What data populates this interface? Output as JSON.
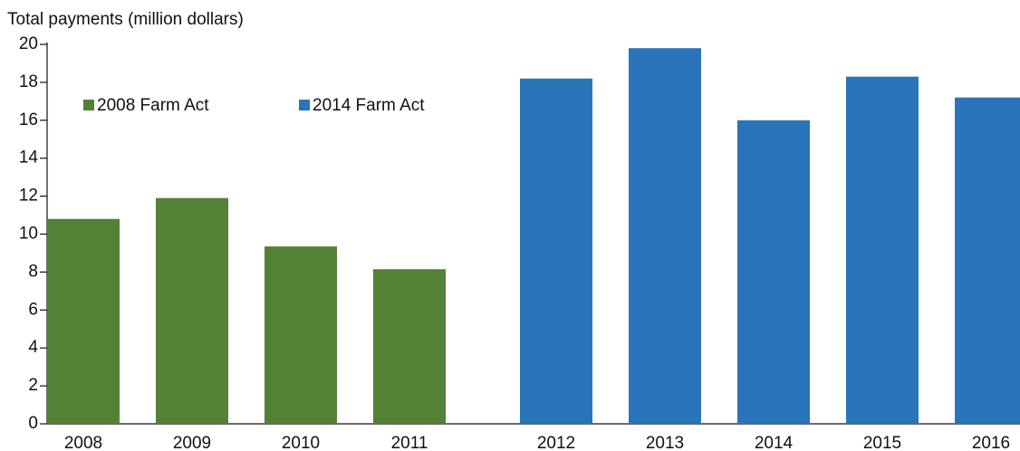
{
  "chart_data": {
    "type": "bar",
    "y_axis_label": "Total payments (million dollars)",
    "categories": [
      "2008",
      "2009",
      "2010",
      "2011",
      "2012",
      "2013",
      "2014",
      "2015",
      "2016"
    ],
    "series": [
      {
        "name": "2008 Farm Act",
        "color": "#538135",
        "values": [
          10.8,
          11.9,
          9.35,
          8.15,
          null,
          null,
          null,
          null,
          null
        ]
      },
      {
        "name": "2014 Farm Act",
        "color": "#2a75b9",
        "values": [
          null,
          null,
          null,
          null,
          18.2,
          19.8,
          16.0,
          18.3,
          17.2
        ]
      }
    ],
    "ylim": [
      0,
      20
    ],
    "yticks": [
      0,
      2,
      4,
      6,
      8,
      10,
      12,
      14,
      16,
      18,
      20
    ]
  }
}
